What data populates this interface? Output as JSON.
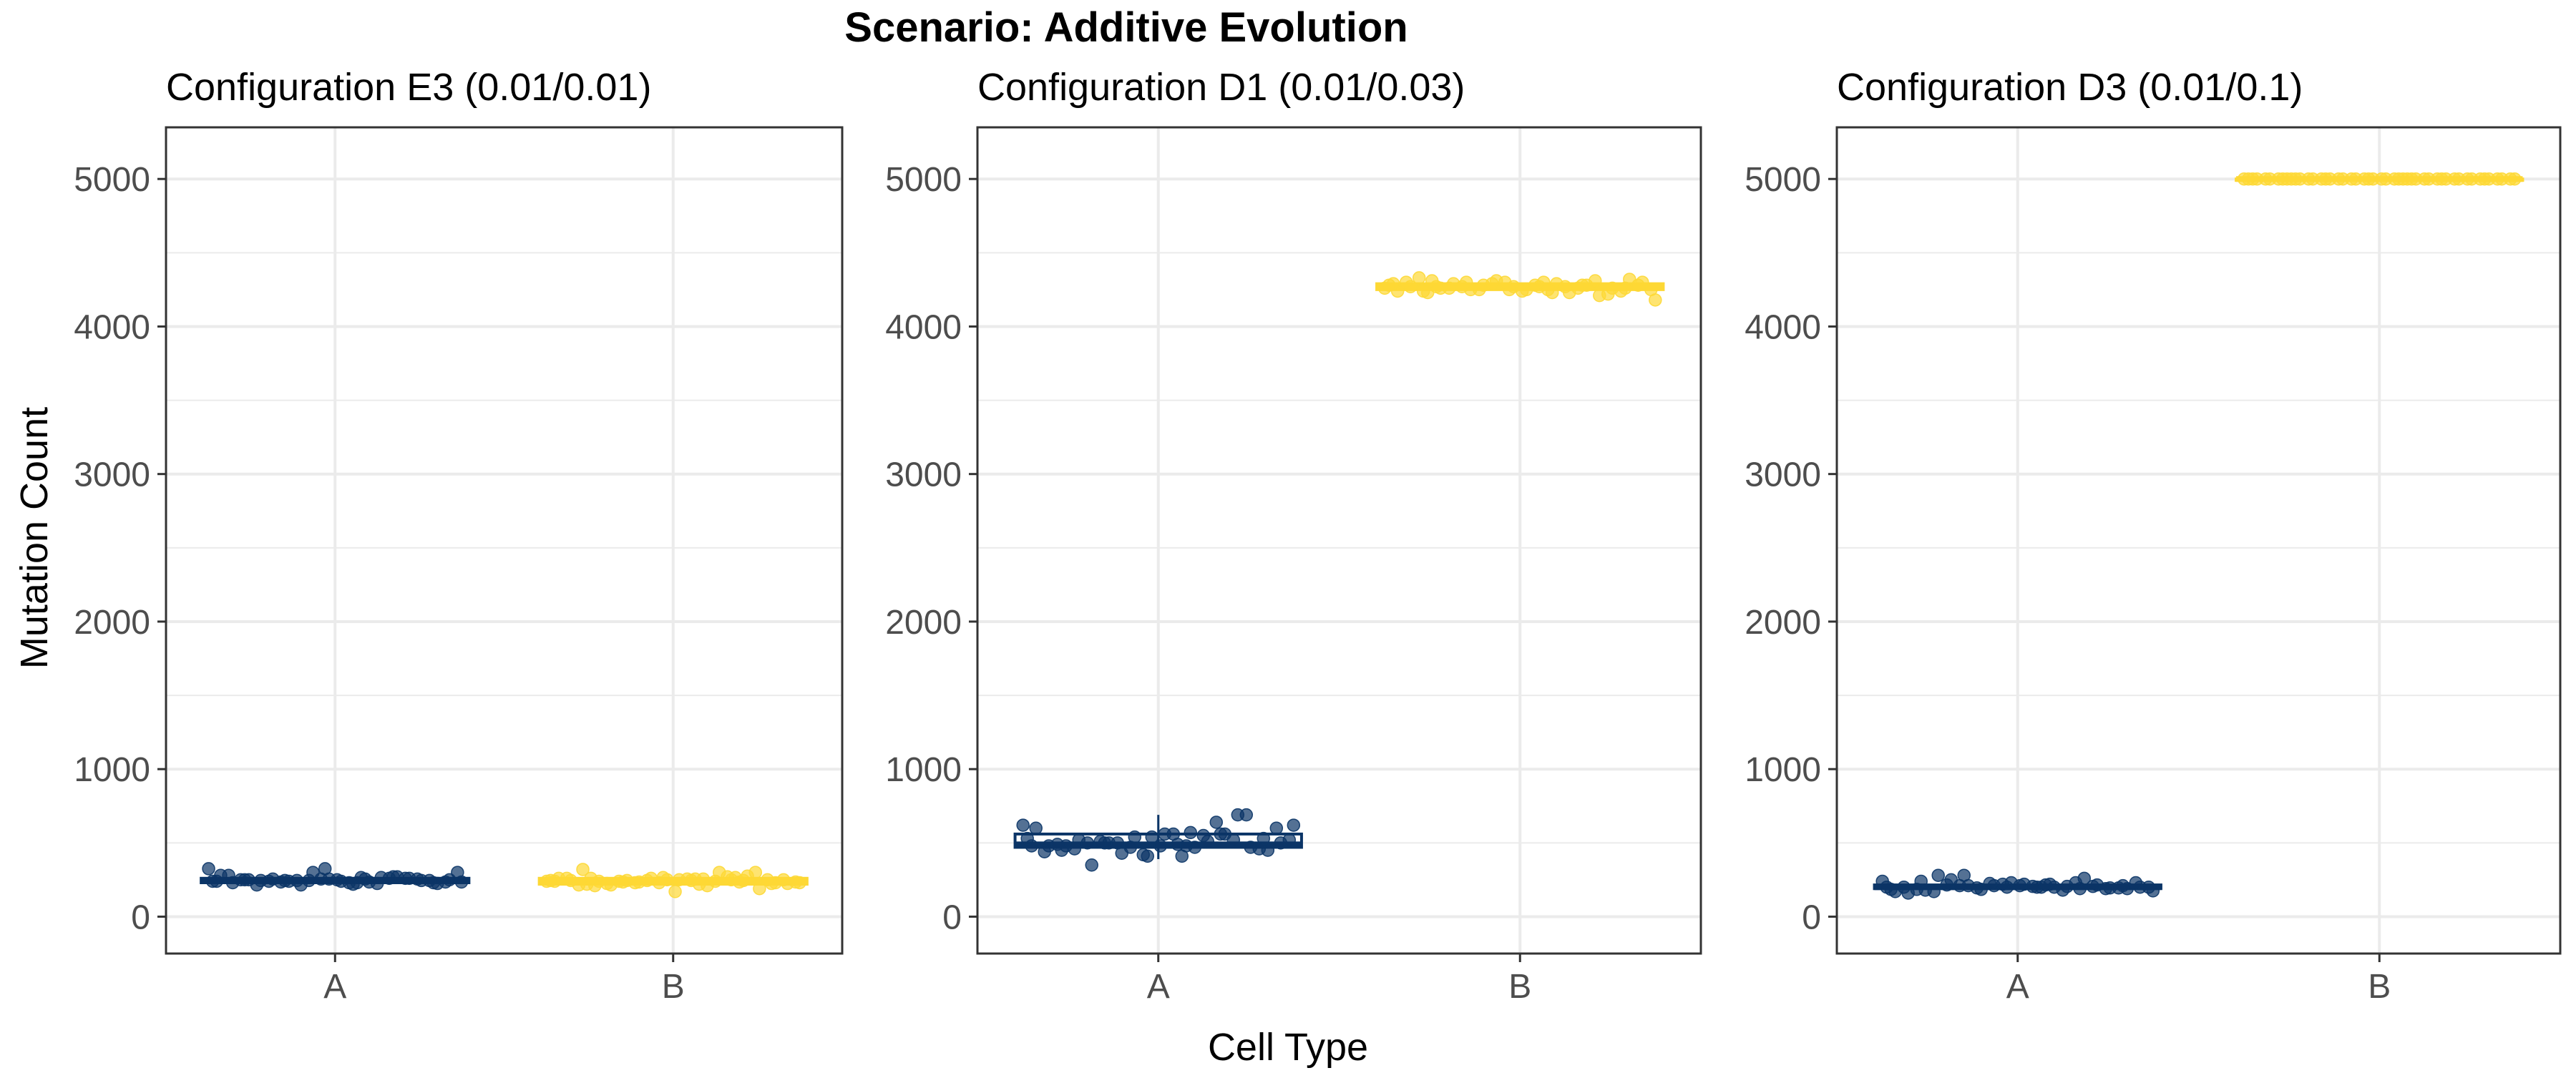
{
  "figure_title": "Scenario: Additive Evolution",
  "xlabel": "Cell Type",
  "ylabel": "Mutation Count",
  "colors": {
    "A": "#0b3567",
    "B": "#fdd835",
    "grid": "#ebebeb",
    "frame": "#333333"
  },
  "chart_data": [
    {
      "type": "scatter",
      "title": "Configuration E3 (0.01/0.01)",
      "categories": [
        "A",
        "B"
      ],
      "ylim": [
        -250,
        5350
      ],
      "yticks": [
        0,
        1000,
        2000,
        3000,
        4000,
        5000
      ],
      "grid": true,
      "series": [
        {
          "category": "A",
          "median": 245,
          "q1": 230,
          "q3": 260,
          "values": [
            325,
            230,
            250,
            270,
            240,
            225,
            255,
            280,
            235,
            245,
            260,
            215,
            250,
            240,
            230,
            265,
            255,
            245,
            300,
            235,
            220,
            250,
            270,
            245,
            230,
            325,
            240,
            255,
            215,
            260,
            245,
            235,
            250,
            280,
            225,
            240,
            255,
            245,
            300,
            230,
            250,
            260,
            235,
            245,
            255,
            240,
            265
          ]
        },
        {
          "category": "B",
          "median": 240,
          "q1": 220,
          "q3": 260,
          "values": [
            240,
            255,
            220,
            265,
            245,
            230,
            250,
            260,
            210,
            240,
            275,
            235,
            225,
            250,
            245,
            300,
            215,
            190,
            260,
            230,
            245,
            320,
            250,
            235,
            225,
            265,
            240,
            255,
            210,
            245,
            230,
            250,
            170,
            260,
            240,
            225,
            300,
            245,
            235,
            255,
            215,
            270,
            240,
            250,
            230,
            245,
            220,
            260,
            235
          ]
        }
      ]
    },
    {
      "type": "scatter",
      "title": "Configuration D1 (0.01/0.03)",
      "categories": [
        "A",
        "B"
      ],
      "ylim": [
        -250,
        5350
      ],
      "yticks": [
        0,
        1000,
        2000,
        3000,
        4000,
        5000
      ],
      "grid": true,
      "series": [
        {
          "category": "A",
          "median": 490,
          "q1": 470,
          "q3": 560,
          "whisker_low": 390,
          "whisker_high": 690,
          "values": [
            620,
            410,
            480,
            560,
            500,
            450,
            540,
            600,
            470,
            520,
            690,
            430,
            500,
            560,
            480,
            510,
            350,
            470,
            540,
            620,
            490,
            450,
            560,
            500,
            530,
            410,
            480,
            570,
            460,
            520,
            500,
            600,
            480,
            440,
            550,
            500,
            690,
            470,
            520,
            560,
            490,
            640,
            510,
            460,
            420,
            530,
            480
          ]
        },
        {
          "category": "B",
          "median": 4270,
          "q1": 4250,
          "q3": 4290,
          "values": [
            4260,
            4300,
            4230,
            4280,
            4250,
            4320,
            4270,
            4240,
            4290,
            4260,
            4210,
            4280,
            4300,
            4250,
            4270,
            4230,
            4290,
            4260,
            4310,
            4180,
            4270,
            4240,
            4280,
            4300,
            4260,
            4250,
            4290,
            4230,
            4270,
            4310,
            4250,
            4280,
            4240,
            4300,
            4270,
            4260,
            4220,
            4290,
            4250,
            4280,
            4330,
            4260,
            4270,
            4240,
            4300,
            4280,
            4250,
            4310
          ]
        }
      ]
    },
    {
      "type": "scatter",
      "title": "Configuration D3 (0.01/0.1)",
      "categories": [
        "A",
        "B"
      ],
      "ylim": [
        -250,
        5350
      ],
      "yticks": [
        0,
        1000,
        2000,
        3000,
        4000,
        5000
      ],
      "grid": true,
      "series": [
        {
          "category": "A",
          "median": 200,
          "q1": 190,
          "q3": 215,
          "values": [
            240,
            200,
            180,
            260,
            210,
            190,
            230,
            170,
            200,
            280,
            215,
            185,
            200,
            220,
            160,
            205,
            250,
            195,
            210,
            175,
            200,
            240,
            190,
            280,
            210,
            200,
            185,
            220,
            170,
            205,
            195,
            230,
            210,
            200,
            180,
            215,
            190,
            225,
            200,
            205,
            185,
            230,
            210,
            195,
            220,
            200,
            215
          ]
        },
        {
          "category": "B",
          "median": 5000,
          "q1": 5000,
          "q3": 5000,
          "values": [
            5000,
            5000,
            5000,
            5000,
            5000,
            5000,
            5000,
            5000,
            5000,
            5000,
            5000,
            5000,
            5000,
            5000,
            5000,
            5000,
            5000,
            5000,
            5000,
            5000,
            5000,
            5000,
            5000,
            5000,
            5000,
            5000,
            5000,
            5000,
            5000,
            5000,
            5000,
            5000,
            5000,
            5000,
            5000,
            5000,
            5000,
            5000,
            5000,
            5000,
            5000,
            5000,
            5000,
            5000,
            5000,
            5000,
            5000,
            5000
          ]
        }
      ]
    }
  ]
}
